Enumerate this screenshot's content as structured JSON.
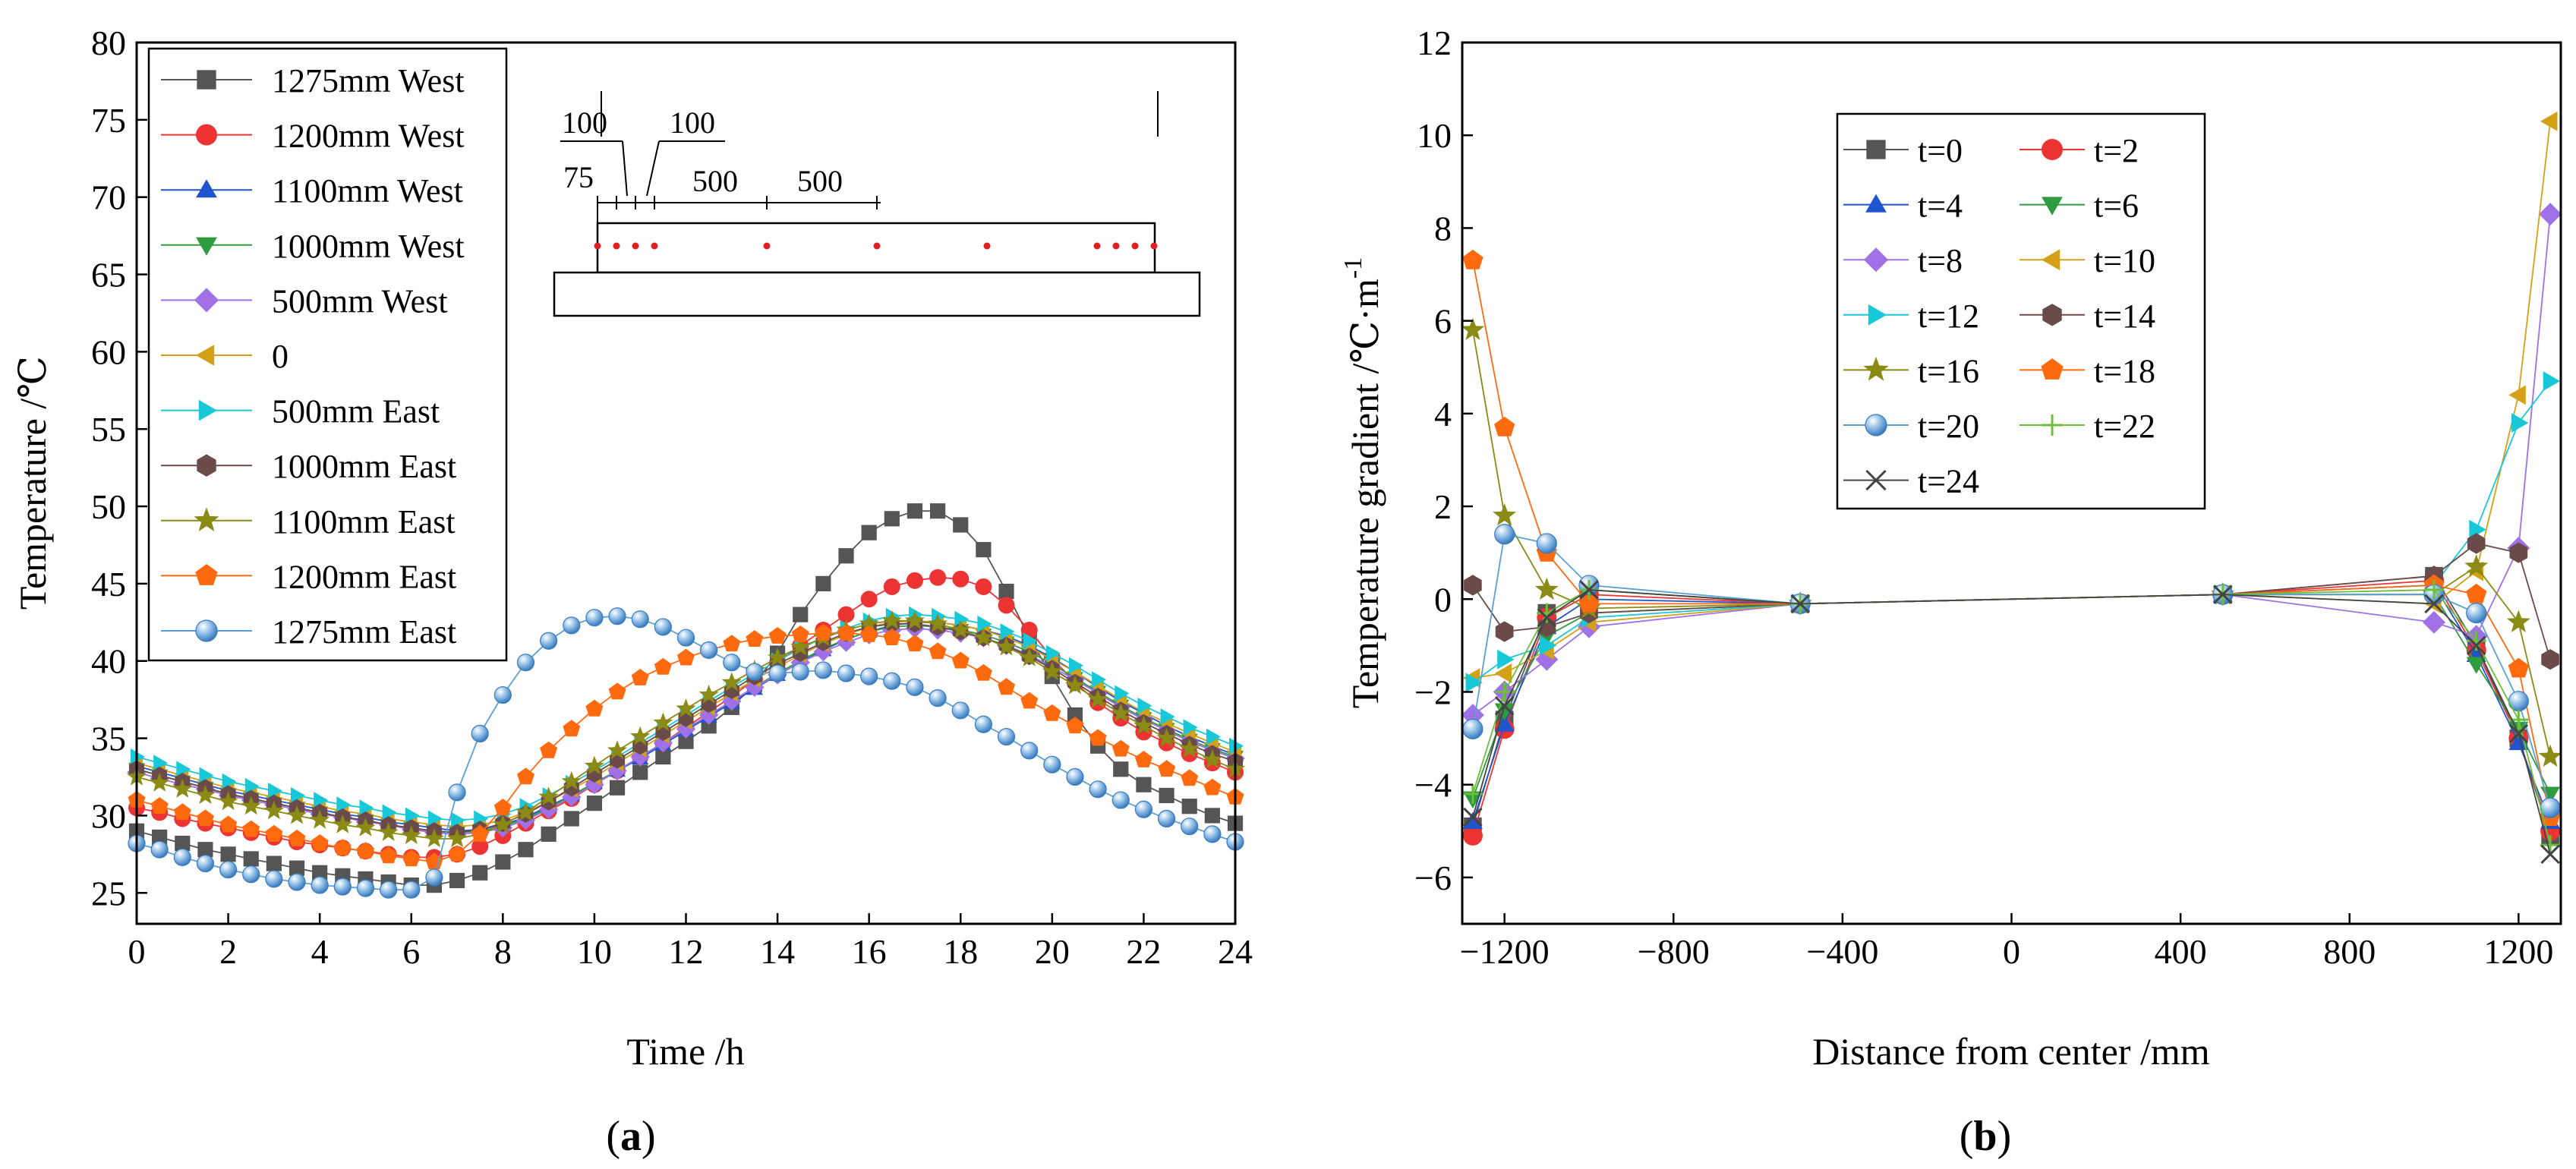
{
  "captions": [
    "a",
    "b"
  ],
  "inset": {
    "dims_top": [
      "100",
      "100"
    ],
    "dims_bottom": [
      "75",
      "500",
      "500"
    ]
  },
  "chart_data": [
    {
      "type": "line",
      "panel": "a",
      "xlabel": "Time /h",
      "ylabel": "Temperature /℃",
      "xlim": [
        0,
        24
      ],
      "ylim": [
        23,
        80
      ],
      "xticks": [
        0,
        2,
        4,
        6,
        8,
        10,
        12,
        14,
        16,
        18,
        20,
        22,
        24
      ],
      "yticks": [
        25,
        30,
        35,
        40,
        45,
        50,
        55,
        60,
        65,
        70,
        75,
        80
      ],
      "legend_position": "top-left",
      "x": [
        0,
        0.5,
        1,
        1.5,
        2,
        2.5,
        3,
        3.5,
        4,
        4.5,
        5,
        5.5,
        6,
        6.5,
        7,
        7.5,
        8,
        8.5,
        9,
        9.5,
        10,
        10.5,
        11,
        11.5,
        12,
        12.5,
        13,
        13.5,
        14,
        14.5,
        15,
        15.5,
        16,
        16.5,
        17,
        17.5,
        18,
        18.5,
        19,
        19.5,
        20,
        20.5,
        21,
        21.5,
        22,
        22.5,
        23,
        23.5,
        24
      ],
      "series": [
        {
          "name": "1275mm West",
          "color": "#555555",
          "marker": "square",
          "values": [
            29.0,
            28.6,
            28.2,
            27.8,
            27.5,
            27.2,
            26.9,
            26.6,
            26.3,
            26.1,
            25.9,
            25.7,
            25.5,
            25.5,
            25.8,
            26.3,
            27.0,
            27.8,
            28.8,
            29.8,
            30.8,
            31.8,
            32.8,
            33.8,
            34.8,
            35.8,
            37.0,
            38.5,
            40.5,
            43.0,
            45.0,
            46.8,
            48.3,
            49.2,
            49.7,
            49.7,
            48.8,
            47.2,
            44.5,
            41.5,
            39.0,
            36.5,
            34.5,
            33.0,
            32.0,
            31.3,
            30.6,
            30.0,
            29.5
          ]
        },
        {
          "name": "1200mm West",
          "color": "#ee3333",
          "marker": "circle",
          "values": [
            30.5,
            30.2,
            29.8,
            29.5,
            29.2,
            28.9,
            28.6,
            28.3,
            28.1,
            27.9,
            27.7,
            27.5,
            27.3,
            27.3,
            27.5,
            28.0,
            28.7,
            29.5,
            30.3,
            31.1,
            32.0,
            32.9,
            33.8,
            34.7,
            35.7,
            36.7,
            37.7,
            38.8,
            39.9,
            41.0,
            42.0,
            43.0,
            44.0,
            44.8,
            45.2,
            45.4,
            45.3,
            44.8,
            43.6,
            42.0,
            40.2,
            38.6,
            37.3,
            36.3,
            35.4,
            34.7,
            34.0,
            33.4,
            32.8
          ]
        },
        {
          "name": "1100mm West",
          "color": "#1f55cc",
          "marker": "triangle-up",
          "values": [
            33.2,
            32.8,
            32.4,
            32.0,
            31.6,
            31.3,
            31.0,
            30.7,
            30.4,
            30.1,
            29.9,
            29.6,
            29.4,
            29.2,
            29.0,
            29.1,
            29.4,
            29.9,
            30.6,
            31.3,
            32.1,
            32.9,
            33.7,
            34.6,
            35.5,
            36.4,
            37.3,
            38.2,
            39.1,
            39.9,
            40.7,
            41.4,
            41.9,
            42.3,
            42.5,
            42.5,
            42.3,
            42.0,
            41.6,
            41.0,
            40.2,
            39.3,
            38.3,
            37.4,
            36.6,
            35.8,
            35.1,
            34.5,
            33.9
          ]
        },
        {
          "name": "1000mm West",
          "color": "#2e9b3e",
          "marker": "triangle-down",
          "values": [
            33.0,
            32.6,
            32.2,
            31.8,
            31.4,
            31.1,
            30.8,
            30.5,
            30.2,
            29.9,
            29.7,
            29.4,
            29.2,
            29.0,
            28.9,
            29.0,
            29.3,
            29.8,
            30.5,
            31.3,
            32.1,
            32.9,
            33.8,
            34.7,
            35.6,
            36.5,
            37.4,
            38.3,
            39.2,
            40.0,
            40.8,
            41.4,
            41.9,
            42.2,
            42.3,
            42.2,
            42.0,
            41.7,
            41.2,
            40.6,
            39.8,
            38.9,
            38.0,
            37.1,
            36.3,
            35.6,
            34.9,
            34.3,
            33.8
          ]
        },
        {
          "name": "500mm West",
          "color": "#a070e6",
          "marker": "diamond",
          "values": [
            32.8,
            32.4,
            32.0,
            31.7,
            31.3,
            31.0,
            30.7,
            30.4,
            30.1,
            29.9,
            29.6,
            29.4,
            29.1,
            28.9,
            28.8,
            28.9,
            29.2,
            29.7,
            30.4,
            31.2,
            32.0,
            32.9,
            33.8,
            34.7,
            35.6,
            36.5,
            37.4,
            38.3,
            39.1,
            39.9,
            40.6,
            41.2,
            41.7,
            42.0,
            42.1,
            42.0,
            41.8,
            41.5,
            41.0,
            40.4,
            39.6,
            38.8,
            37.9,
            37.0,
            36.2,
            35.5,
            34.8,
            34.2,
            33.7
          ]
        },
        {
          "name": "0",
          "color": "#d4a017",
          "marker": "triangle-left",
          "values": [
            33.4,
            33.0,
            32.6,
            32.2,
            31.8,
            31.5,
            31.2,
            30.9,
            30.6,
            30.3,
            30.1,
            29.8,
            29.6,
            29.4,
            29.3,
            29.4,
            29.7,
            30.2,
            30.9,
            31.7,
            32.5,
            33.4,
            34.3,
            35.2,
            36.1,
            37.0,
            37.9,
            38.8,
            39.6,
            40.4,
            41.1,
            41.7,
            42.2,
            42.5,
            42.6,
            42.5,
            42.3,
            42.0,
            41.5,
            40.9,
            40.1,
            39.3,
            38.4,
            37.5,
            36.7,
            36.0,
            35.3,
            34.7,
            34.1
          ]
        },
        {
          "name": "500mm East",
          "color": "#18c8d8",
          "marker": "triangle-right",
          "values": [
            33.8,
            33.4,
            33.0,
            32.6,
            32.2,
            31.9,
            31.6,
            31.3,
            31.0,
            30.7,
            30.5,
            30.2,
            30.0,
            29.8,
            29.7,
            29.8,
            30.1,
            30.6,
            31.3,
            32.1,
            32.9,
            33.8,
            34.7,
            35.6,
            36.5,
            37.4,
            38.3,
            39.2,
            40.0,
            40.8,
            41.5,
            42.1,
            42.6,
            42.9,
            43.0,
            42.9,
            42.7,
            42.4,
            41.9,
            41.3,
            40.5,
            39.7,
            38.8,
            37.9,
            37.1,
            36.4,
            35.7,
            35.1,
            34.5
          ]
        },
        {
          "name": "1000mm East",
          "color": "#6b4a4a",
          "marker": "hexagon",
          "values": [
            33.0,
            32.6,
            32.2,
            31.8,
            31.4,
            31.1,
            30.8,
            30.5,
            30.2,
            29.9,
            29.7,
            29.4,
            29.2,
            29.0,
            28.9,
            29.1,
            29.5,
            30.1,
            30.9,
            31.8,
            32.7,
            33.6,
            34.5,
            35.4,
            36.3,
            37.2,
            38.1,
            39.0,
            39.8,
            40.5,
            41.2,
            41.8,
            42.2,
            42.4,
            42.4,
            42.2,
            41.9,
            41.5,
            41.0,
            40.3,
            39.5,
            38.6,
            37.7,
            36.8,
            36.0,
            35.3,
            34.6,
            34.0,
            33.5
          ]
        },
        {
          "name": "1100mm East",
          "color": "#8a8a14",
          "marker": "star",
          "values": [
            32.5,
            32.1,
            31.7,
            31.3,
            30.9,
            30.6,
            30.3,
            30.0,
            29.7,
            29.4,
            29.2,
            28.9,
            28.7,
            28.5,
            28.5,
            28.8,
            29.4,
            30.2,
            31.2,
            32.2,
            33.2,
            34.2,
            35.1,
            36.0,
            36.9,
            37.8,
            38.6,
            39.4,
            40.2,
            40.9,
            41.5,
            42.0,
            42.4,
            42.6,
            42.6,
            42.4,
            42.0,
            41.5,
            40.9,
            40.2,
            39.3,
            38.4,
            37.5,
            36.6,
            35.8,
            35.0,
            34.3,
            33.6,
            33.0
          ]
        },
        {
          "name": "1200mm East",
          "color": "#ff6a0f",
          "marker": "pentagon",
          "values": [
            31.0,
            30.6,
            30.2,
            29.8,
            29.4,
            29.1,
            28.8,
            28.5,
            28.2,
            27.9,
            27.7,
            27.4,
            27.2,
            27.0,
            27.5,
            28.8,
            30.5,
            32.5,
            34.2,
            35.6,
            36.9,
            38.0,
            38.9,
            39.6,
            40.2,
            40.7,
            41.1,
            41.4,
            41.6,
            41.7,
            41.8,
            41.8,
            41.7,
            41.5,
            41.1,
            40.6,
            40.0,
            39.2,
            38.3,
            37.4,
            36.6,
            35.8,
            35.0,
            34.3,
            33.6,
            33.0,
            32.4,
            31.8,
            31.2
          ]
        },
        {
          "name": "1275mm East",
          "color": "#5aa0d8",
          "marker": "sphere",
          "values": [
            28.2,
            27.8,
            27.3,
            26.9,
            26.5,
            26.2,
            25.9,
            25.7,
            25.5,
            25.4,
            25.3,
            25.2,
            25.2,
            26.0,
            31.5,
            35.3,
            37.8,
            39.9,
            41.3,
            42.3,
            42.8,
            42.9,
            42.7,
            42.2,
            41.5,
            40.7,
            39.9,
            39.3,
            39.2,
            39.3,
            39.4,
            39.2,
            39.0,
            38.7,
            38.3,
            37.6,
            36.8,
            35.9,
            35.1,
            34.2,
            33.3,
            32.5,
            31.7,
            31.0,
            30.4,
            29.8,
            29.3,
            28.8,
            28.3
          ]
        }
      ]
    },
    {
      "type": "line",
      "panel": "b",
      "xlabel": "Distance from center /mm",
      "ylabel": "Temperature gradient /℃·m",
      "ylabel_superscript": "-1",
      "xlim": [
        -1300,
        1300
      ],
      "ylim": [
        -7,
        12
      ],
      "xticks": [
        -1200,
        -800,
        -400,
        0,
        400,
        800,
        1200
      ],
      "xtick_labels": [
        "−1200",
        "−800",
        "−400",
        "0",
        "400",
        "800",
        "1200"
      ],
      "yticks": [
        -6,
        -4,
        -2,
        0,
        2,
        4,
        6,
        8,
        10,
        12
      ],
      "ytick_labels": [
        "−6",
        "−4",
        "−2",
        "0",
        "2",
        "4",
        "6",
        "8",
        "10",
        "12"
      ],
      "legend_position": "top-center",
      "legend_columns": 2,
      "x": [
        -1275,
        -1200,
        -1100,
        -1000,
        -500,
        500,
        1000,
        1100,
        1200,
        1275
      ],
      "series": [
        {
          "name": "t=0",
          "color": "#555555",
          "marker": "square",
          "values": [
            -4.9,
            -2.6,
            -0.3,
            0.2,
            -0.1,
            0.1,
            0.5,
            -1.0,
            -3.0,
            -5.1
          ]
        },
        {
          "name": "t=2",
          "color": "#ee3333",
          "marker": "circle",
          "values": [
            -5.1,
            -2.8,
            -0.4,
            0.1,
            -0.1,
            0.1,
            0.4,
            -1.1,
            -3.0,
            -5.0
          ]
        },
        {
          "name": "t=4",
          "color": "#1f55cc",
          "marker": "triangle-up",
          "values": [
            -4.8,
            -2.7,
            -0.6,
            0.0,
            -0.1,
            0.1,
            0.3,
            -1.2,
            -3.1,
            -4.8
          ]
        },
        {
          "name": "t=6",
          "color": "#2e9b3e",
          "marker": "triangle-down",
          "values": [
            -4.3,
            -2.4,
            -0.8,
            -0.3,
            -0.1,
            0.1,
            0.1,
            -1.4,
            -2.8,
            -4.2
          ]
        },
        {
          "name": "t=8",
          "color": "#a070e6",
          "marker": "diamond",
          "values": [
            -2.5,
            -2.0,
            -1.3,
            -0.6,
            -0.1,
            0.1,
            -0.5,
            -0.8,
            1.1,
            8.3
          ]
        },
        {
          "name": "t=10",
          "color": "#d4a017",
          "marker": "triangle-left",
          "values": [
            -1.7,
            -1.6,
            -1.1,
            -0.5,
            -0.1,
            0.1,
            -0.1,
            0.6,
            4.4,
            10.3
          ]
        },
        {
          "name": "t=12",
          "color": "#18c8d8",
          "marker": "triangle-right",
          "values": [
            -1.8,
            -1.3,
            -1.0,
            -0.4,
            -0.1,
            0.1,
            0.3,
            1.5,
            3.8,
            4.7
          ]
        },
        {
          "name": "t=14",
          "color": "#6b4a4a",
          "marker": "hexagon",
          "values": [
            0.3,
            -0.7,
            -0.6,
            -0.3,
            -0.1,
            0.1,
            0.5,
            1.2,
            1.0,
            -1.3
          ]
        },
        {
          "name": "t=16",
          "color": "#8a8a14",
          "marker": "star",
          "values": [
            5.8,
            1.8,
            0.2,
            -0.2,
            -0.1,
            0.1,
            0.1,
            0.7,
            -0.5,
            -3.4
          ]
        },
        {
          "name": "t=18",
          "color": "#ff6a0f",
          "marker": "pentagon",
          "values": [
            7.3,
            3.7,
            1.0,
            -0.1,
            -0.1,
            0.1,
            0.3,
            0.1,
            -1.5,
            -4.7
          ]
        },
        {
          "name": "t=20",
          "color": "#5aa0d8",
          "marker": "sphere",
          "values": [
            -2.8,
            1.4,
            1.2,
            0.3,
            -0.1,
            0.1,
            0.1,
            -0.3,
            -2.2,
            -4.5
          ]
        },
        {
          "name": "t=22",
          "color": "#6bbf3a",
          "marker": "plus",
          "values": [
            -4.2,
            -2.0,
            -0.3,
            0.2,
            -0.1,
            0.1,
            0.2,
            -0.9,
            -2.6,
            -5.3
          ]
        },
        {
          "name": "t=24",
          "color": "#444444",
          "marker": "cross",
          "values": [
            -4.7,
            -2.3,
            -0.4,
            0.2,
            -0.1,
            0.1,
            -0.1,
            -1.0,
            -2.9,
            -5.5
          ]
        }
      ]
    }
  ]
}
